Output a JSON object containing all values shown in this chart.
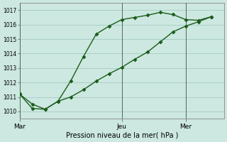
{
  "xlabel": "Pression niveau de la mer( hPa )",
  "bg_color": "#cce8e0",
  "grid_color": "#aacfc8",
  "line_color": "#1a5c1a",
  "ylim": [
    1009.5,
    1017.5
  ],
  "yticks": [
    1010,
    1011,
    1012,
    1013,
    1014,
    1015,
    1016,
    1017
  ],
  "xlim": [
    0,
    16
  ],
  "day_labels": [
    "Mar",
    "Jeu",
    "Mer"
  ],
  "day_positions": [
    0,
    8,
    13
  ],
  "series1_x": [
    0,
    1,
    2,
    3,
    4,
    5,
    6,
    7,
    8,
    9,
    10,
    11,
    12,
    13,
    14,
    15
  ],
  "series1_y": [
    1011.2,
    1010.2,
    1010.15,
    1010.7,
    1012.1,
    1013.8,
    1015.35,
    1015.9,
    1016.35,
    1016.5,
    1016.65,
    1016.85,
    1016.7,
    1016.35,
    1016.3,
    1016.55
  ],
  "series2_x": [
    0,
    1,
    2,
    3,
    4,
    5,
    6,
    7,
    8,
    9,
    10,
    11,
    12,
    13,
    14,
    15
  ],
  "series2_y": [
    1011.2,
    1010.5,
    1010.15,
    1010.7,
    1011.0,
    1011.5,
    1012.1,
    1012.6,
    1013.05,
    1013.6,
    1014.1,
    1014.8,
    1015.5,
    1015.9,
    1016.2,
    1016.55
  ],
  "vline_positions": [
    0,
    8,
    13
  ],
  "marker_size": 3,
  "line_width": 1.0
}
